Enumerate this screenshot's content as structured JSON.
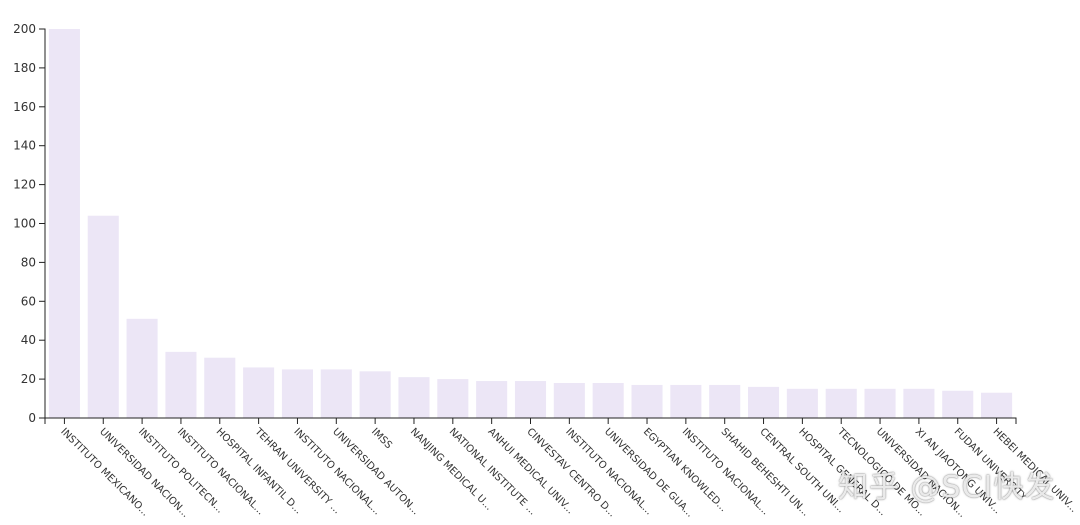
{
  "chart_data": {
    "type": "bar",
    "categories": [
      "INSTITUTO MEXICANO...",
      "UNIVERSIDAD NACION...",
      "INSTITUTO POLITECN...",
      "INSTITUTO NACIONAL...",
      "HOSPITAL INFANTIL D...",
      "TEHRAN UNIVERSITY ...",
      "INSTITUTO NACIONAL...",
      "UNIVERSIDAD AUTON...",
      "IMSS",
      "NANJING MEDICAL U...",
      "NATIONAL INSTITUTE ...",
      "ANHUI MEDICAL UNIV...",
      "CINVESTAV CENTRO D...",
      "INSTITUTO NACIONAL...",
      "UNIVERSIDAD DE GUA...",
      "EGYPTIAN KNOWLED...",
      "INSTITUTO NACIONAL...",
      "SHAHID BEHESHTI UN...",
      "CENTRAL SOUTH UNI...",
      "HOSPITAL GENERAL D...",
      "TECNOLOGICO DE MO...",
      "UNIVERSIDAD NACION...",
      "XI AN JIAOTONG UNIV...",
      "FUDAN UNIVERSITY",
      "HEBEI MEDICAL UNIV..."
    ],
    "values": [
      200,
      104,
      51,
      34,
      31,
      26,
      25,
      25,
      24,
      21,
      20,
      19,
      19,
      18,
      18,
      17,
      17,
      17,
      16,
      15,
      15,
      15,
      15,
      14,
      13
    ],
    "ylim": [
      0,
      200
    ],
    "yticks": [
      0,
      20,
      40,
      60,
      80,
      100,
      120,
      140,
      160,
      180,
      200
    ],
    "bar_color": "#ece6f6",
    "title": "",
    "xlabel": "",
    "ylabel": ""
  },
  "watermark": "知乎 @SCI快发"
}
